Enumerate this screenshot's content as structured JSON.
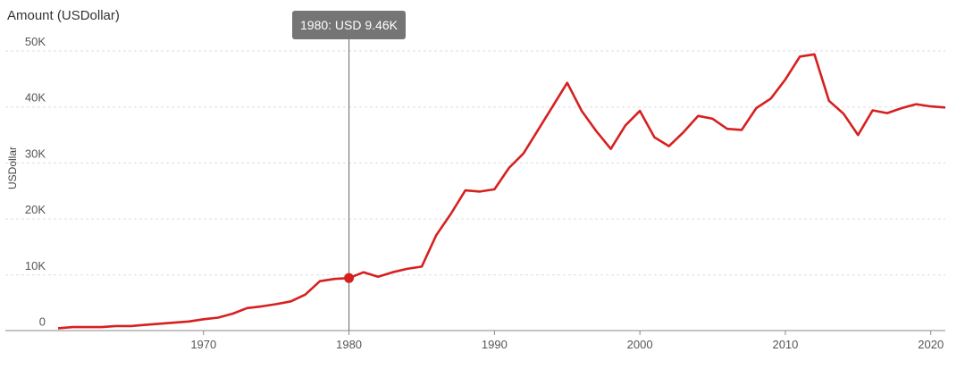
{
  "chart_data": {
    "type": "line",
    "title": "Amount (USDollar)",
    "xlabel": "",
    "ylabel": "USDollar",
    "xlim": [
      1960,
      2021
    ],
    "ylim": [
      0,
      50000
    ],
    "y_ticks": [
      {
        "value": 0,
        "label": "0"
      },
      {
        "value": 10000,
        "label": "10K"
      },
      {
        "value": 20000,
        "label": "20K"
      },
      {
        "value": 30000,
        "label": "30K"
      },
      {
        "value": 40000,
        "label": "40K"
      },
      {
        "value": 50000,
        "label": "50K"
      }
    ],
    "x_ticks": [
      1970,
      1980,
      1990,
      2000,
      2010,
      2020
    ],
    "grid": true,
    "color": "#d62020",
    "series": [
      {
        "x": [
          1960,
          1961,
          1962,
          1963,
          1964,
          1965,
          1966,
          1967,
          1968,
          1969,
          1970,
          1971,
          1972,
          1973,
          1974,
          1975,
          1976,
          1977,
          1978,
          1979,
          1980,
          1981,
          1982,
          1983,
          1984,
          1985,
          1986,
          1987,
          1988,
          1989,
          1990,
          1991,
          1992,
          1993,
          1994,
          1995,
          1996,
          1997,
          1998,
          1999,
          2000,
          2001,
          2002,
          2003,
          2004,
          2005,
          2006,
          2007,
          2008,
          2009,
          2010,
          2011,
          2012,
          2013,
          2014,
          2015,
          2016,
          2017,
          2018,
          2019,
          2020,
          2021
        ],
        "values": [
          500,
          700,
          700,
          700,
          900,
          900,
          1100,
          1300,
          1500,
          1700,
          2100,
          2400,
          3100,
          4100,
          4400,
          4800,
          5300,
          6500,
          8900,
          9300,
          9460,
          10500,
          9700,
          10500,
          11100,
          11500,
          17100,
          20900,
          25100,
          24900,
          25300,
          29100,
          31700,
          35900,
          40100,
          44300,
          39300,
          35700,
          32500,
          36700,
          39300,
          34600,
          33000,
          35500,
          38400,
          37900,
          36100,
          35900,
          39800,
          41500,
          44900,
          49000,
          49400,
          41100,
          38800,
          35000,
          39400,
          38900,
          39800,
          40500,
          40100,
          39900
        ]
      }
    ],
    "highlight": {
      "x": 1980,
      "y": 9460
    },
    "tooltip": "1980: USD 9.46K"
  }
}
